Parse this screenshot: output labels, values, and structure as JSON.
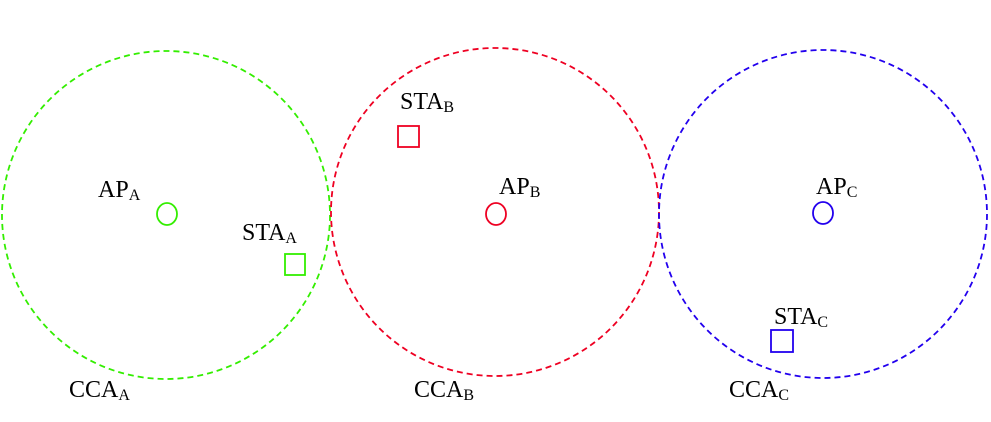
{
  "cells": [
    {
      "id": "A",
      "color": "#33ee00",
      "cca": {
        "main": "CCA",
        "sub": "A"
      },
      "ap": {
        "main": "AP",
        "sub": "A"
      },
      "sta": {
        "main": "STA",
        "sub": "A"
      }
    },
    {
      "id": "B",
      "color": "#ee0022",
      "cca": {
        "main": "CCA",
        "sub": "B"
      },
      "ap": {
        "main": "AP",
        "sub": "B"
      },
      "sta": {
        "main": "STA",
        "sub": "B"
      }
    },
    {
      "id": "C",
      "color": "#2200ee",
      "cca": {
        "main": "CCA",
        "sub": "C"
      },
      "ap": {
        "main": "AP",
        "sub": "C"
      },
      "sta": {
        "main": "STA",
        "sub": "C"
      }
    }
  ]
}
